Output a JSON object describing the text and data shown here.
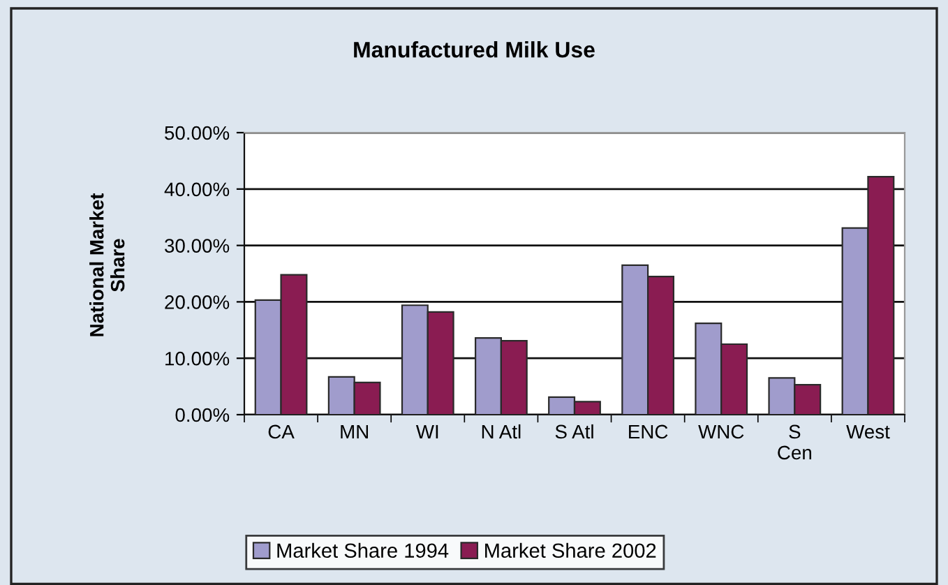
{
  "chart_data": {
    "type": "bar",
    "title": "Manufactured Milk Use",
    "ylabel": "National Market\nShare",
    "categories": [
      "CA",
      "MN",
      "WI",
      "N Atl",
      "S Atl",
      "ENC",
      "WNC",
      "S\nCen",
      "West"
    ],
    "series": [
      {
        "name": "Market Share 1994",
        "color": "#a09ccc",
        "values": [
          20.3,
          6.7,
          19.4,
          13.6,
          3.1,
          26.5,
          16.2,
          6.5,
          33.1
        ]
      },
      {
        "name": "Market Share 2002",
        "color": "#8a1c52",
        "values": [
          24.8,
          5.7,
          18.2,
          13.1,
          2.3,
          24.5,
          12.5,
          5.3,
          42.2
        ]
      }
    ],
    "ylim": [
      0,
      50
    ],
    "yticks": [
      {
        "value": 0,
        "label": "0.00%"
      },
      {
        "value": 10,
        "label": "10.00%"
      },
      {
        "value": 20,
        "label": "20.00%"
      },
      {
        "value": 30,
        "label": "30.00%"
      },
      {
        "value": 40,
        "label": "40.00%"
      },
      {
        "value": 50,
        "label": "50.00%"
      }
    ],
    "grid": "y",
    "legend": "bottom"
  }
}
